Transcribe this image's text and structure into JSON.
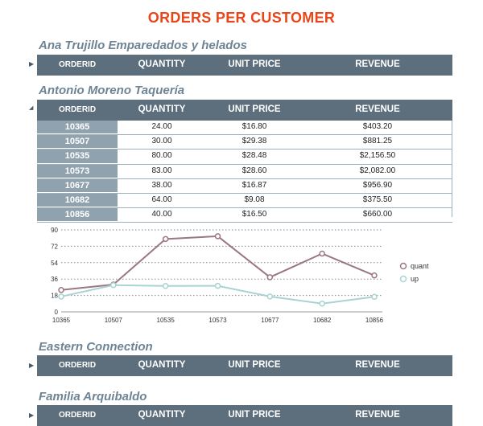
{
  "page": {
    "title": "ORDERS PER CUSTOMER"
  },
  "columns": {
    "orderid": "ORDERID",
    "quantity": "QUANTITY",
    "unit_price": "UNIT PRICE",
    "revenue": "REVENUE"
  },
  "groups": [
    {
      "name": "Ana Trujillo Emparedados y helados",
      "expanded": false
    },
    {
      "name": "Antonio Moreno Taquería",
      "expanded": true,
      "rows": [
        {
          "orderid": "10365",
          "quantity": "24.00",
          "unit_price": "$16.80",
          "revenue": "$403.20"
        },
        {
          "orderid": "10507",
          "quantity": "30.00",
          "unit_price": "$29.38",
          "revenue": "$881.25"
        },
        {
          "orderid": "10535",
          "quantity": "80.00",
          "unit_price": "$28.48",
          "revenue": "$2,156.50"
        },
        {
          "orderid": "10573",
          "quantity": "83.00",
          "unit_price": "$28.60",
          "revenue": "$2,082.00"
        },
        {
          "orderid": "10677",
          "quantity": "38.00",
          "unit_price": "$16.87",
          "revenue": "$956.90"
        },
        {
          "orderid": "10682",
          "quantity": "64.00",
          "unit_price": "$9.08",
          "revenue": "$375.50"
        },
        {
          "orderid": "10856",
          "quantity": "40.00",
          "unit_price": "$16.50",
          "revenue": "$660.00"
        }
      ]
    },
    {
      "name": "Eastern Connection",
      "expanded": false
    },
    {
      "name": "Familia Arquibaldo",
      "expanded": false
    }
  ],
  "chart_data": {
    "type": "line",
    "x": [
      "10365",
      "10507",
      "10535",
      "10573",
      "10677",
      "10682",
      "10856"
    ],
    "series": [
      {
        "name": "quant",
        "color": "#9b7782",
        "values": [
          24,
          30,
          80,
          83,
          38,
          64,
          40
        ]
      },
      {
        "name": "up",
        "color": "#a8d3d1",
        "values": [
          16.8,
          29.38,
          28.48,
          28.6,
          16.87,
          9.08,
          16.5
        ]
      }
    ],
    "y_ticks": [
      "0",
      "18",
      "36",
      "54",
      "72",
      "90"
    ],
    "ylim": [
      0,
      90
    ],
    "grid": true,
    "legend_position": "right"
  }
}
